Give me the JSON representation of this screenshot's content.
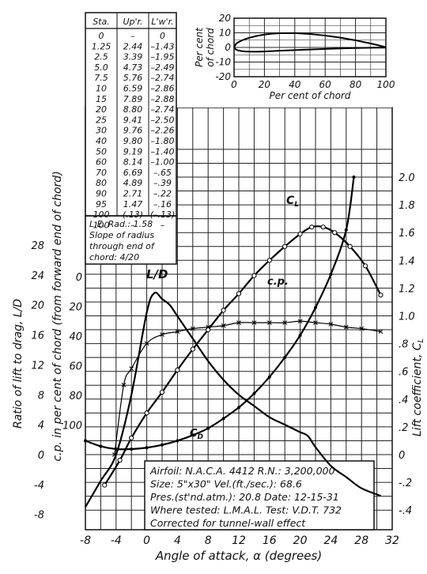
{
  "chart_data": [
    {
      "type": "table",
      "headers": [
        "Sta.",
        "Up'r.",
        "L'w'r."
      ],
      "rows": [
        [
          "0",
          "–",
          "0"
        ],
        [
          "1.25",
          "2.44",
          "–1.43"
        ],
        [
          "2.5",
          "3.39",
          "–1.95"
        ],
        [
          "5.0",
          "4.73",
          "–2.49"
        ],
        [
          "7.5",
          "5.76",
          "–2.74"
        ],
        [
          "10",
          "6.59",
          "–2.86"
        ],
        [
          "15",
          "7.89",
          "–2.88"
        ],
        [
          "20",
          "8.80",
          "–2.74"
        ],
        [
          "25",
          "9.41",
          "–2.50"
        ],
        [
          "30",
          "9.76",
          "–2.26"
        ],
        [
          "40",
          "9.80",
          "–1.80"
        ],
        [
          "50",
          "9.19",
          "–1.40"
        ],
        [
          "60",
          "8.14",
          "–1.00"
        ],
        [
          "70",
          "6.69",
          "–.65"
        ],
        [
          "80",
          "4.89",
          "–.39"
        ],
        [
          "90",
          "2.71",
          "–.22"
        ],
        [
          "95",
          "1.47",
          "–.16"
        ],
        [
          "100",
          "(.13)",
          "(–.13)"
        ],
        [
          "100",
          "–",
          "–"
        ]
      ],
      "notes": [
        "L.E. Rad.: 1.58",
        "Slope of radius",
        "through end of",
        "chord: 4/20"
      ]
    },
    {
      "type": "line",
      "xlabel": "Per cent of chord",
      "ylabel": "Per cent of chord",
      "xlim": [
        0,
        100
      ],
      "ylim": [
        -20,
        20
      ],
      "xticks": [
        "0",
        "20",
        "40",
        "60",
        "80",
        "100"
      ],
      "yticks": [
        "20",
        "10",
        "0",
        "-10",
        "-20"
      ],
      "series": [
        {
          "x": [
            0,
            1.25,
            2.5,
            5,
            7.5,
            10,
            15,
            20,
            25,
            30,
            40,
            50,
            60,
            70,
            80,
            90,
            95,
            100
          ],
          "y": [
            0,
            2.44,
            3.39,
            4.73,
            5.76,
            6.59,
            7.89,
            8.8,
            9.41,
            9.76,
            9.8,
            9.19,
            8.14,
            6.69,
            4.89,
            2.71,
            1.47,
            0.13
          ]
        },
        {
          "x": [
            0,
            1.25,
            2.5,
            5,
            7.5,
            10,
            15,
            20,
            25,
            30,
            40,
            50,
            60,
            70,
            80,
            90,
            95,
            100
          ],
          "y": [
            0,
            -1.43,
            -1.95,
            -2.49,
            -2.74,
            -2.86,
            -2.88,
            -2.74,
            -2.5,
            -2.26,
            -1.8,
            -1.4,
            -1.0,
            -0.65,
            -0.39,
            -0.22,
            -0.16,
            -0.13
          ]
        }
      ]
    },
    {
      "type": "line",
      "xlabel": "Angle of attack, α (degrees)",
      "xlim": [
        -8,
        32
      ],
      "xticks": [
        "-8",
        "-4",
        "0",
        "4",
        "8",
        "12",
        "16",
        "20",
        "24",
        "28",
        "32"
      ],
      "left_axis_ld": {
        "label": "Ratio of lift to drag, L/D",
        "lim": [
          -8,
          28
        ],
        "ticks": [
          "28",
          "24",
          "20",
          "16",
          "12",
          "8",
          "4",
          "0",
          "-4",
          "-8"
        ]
      },
      "left_axis_cp": {
        "label": "c.p. in per cent of chord (from forward end of chord)",
        "lim": [
          0,
          120
        ],
        "ticks": [
          "0",
          "20",
          "40",
          "60",
          "80",
          "100"
        ]
      },
      "right_axis": {
        "label": "Lift coefficient, C_L",
        "lim": [
          -0.4,
          2.0
        ],
        "ticks": [
          "2.0",
          "1.8",
          "1.6",
          "1.4",
          "1.2",
          "1.0",
          ".8",
          ".6",
          ".4",
          ".2",
          "0",
          "-.2",
          "-.4"
        ]
      },
      "series": [
        {
          "name": "C_L",
          "axis": "right",
          "marker": "circle",
          "x": [
            -5.5,
            -3.5,
            -2,
            0,
            2,
            4,
            6,
            8,
            10,
            12,
            14,
            16,
            18,
            20,
            21.5,
            23,
            24.5,
            26.5,
            28.5,
            30.5
          ],
          "y": [
            -0.22,
            -0.04,
            0.12,
            0.3,
            0.45,
            0.61,
            0.76,
            0.9,
            1.04,
            1.16,
            1.29,
            1.4,
            1.5,
            1.59,
            1.64,
            1.64,
            1.6,
            1.5,
            1.36,
            1.15
          ]
        },
        {
          "name": "C_D",
          "axis": "right",
          "marker": "dot",
          "x": [
            -8,
            -6,
            -4,
            -2,
            0,
            2,
            4,
            6,
            8,
            10,
            12,
            14,
            16,
            18,
            20,
            22,
            24,
            26,
            27
          ],
          "y": [
            0.1,
            0.06,
            0.04,
            0.04,
            0.05,
            0.07,
            0.1,
            0.14,
            0.19,
            0.26,
            0.34,
            0.44,
            0.56,
            0.7,
            0.86,
            1.06,
            1.3,
            1.62,
            2.0
          ]
        },
        {
          "name": "L/D",
          "axis": "ld",
          "marker": "none",
          "x": [
            -8,
            -6,
            -4,
            -2,
            0,
            1,
            2,
            3,
            4,
            6,
            8,
            10,
            12,
            14,
            16,
            18,
            20,
            21,
            22,
            24,
            26,
            28,
            30.5
          ],
          "y": [
            -7,
            -3.5,
            0,
            8,
            19,
            21.6,
            20.8,
            20,
            18.5,
            15.5,
            12.5,
            10,
            8,
            6.5,
            5,
            4,
            3,
            2.5,
            1,
            -1.5,
            -3,
            -4.5,
            -5.5
          ]
        },
        {
          "name": "c.p.",
          "axis": "cp",
          "marker": "x",
          "x": [
            -4.2,
            -3,
            -2,
            0,
            2,
            4,
            6,
            8,
            10,
            12,
            14,
            16,
            18,
            20,
            22,
            24,
            26,
            28,
            30.5
          ],
          "y": [
            120,
            73,
            62,
            45,
            39,
            37,
            35,
            34,
            33,
            31,
            31,
            31,
            31,
            30,
            31,
            32,
            34,
            35,
            37
          ]
        }
      ],
      "curve_labels": [
        "L/D",
        "c.p.",
        "C_L",
        "C_D"
      ]
    }
  ],
  "info_box": [
    "Airfoil: N.A.C.A. 4412   R.N.: 3,200,000",
    "Size: 5\"x30\"          Vel.(ft./sec.): 68.6",
    "Pres.(st'nd.atm.): 20.8   Date: 12-15-31",
    "Where tested: L.M.A.L. Test: V.D.T. 732",
    "Corrected for tunnel-wall effect"
  ]
}
